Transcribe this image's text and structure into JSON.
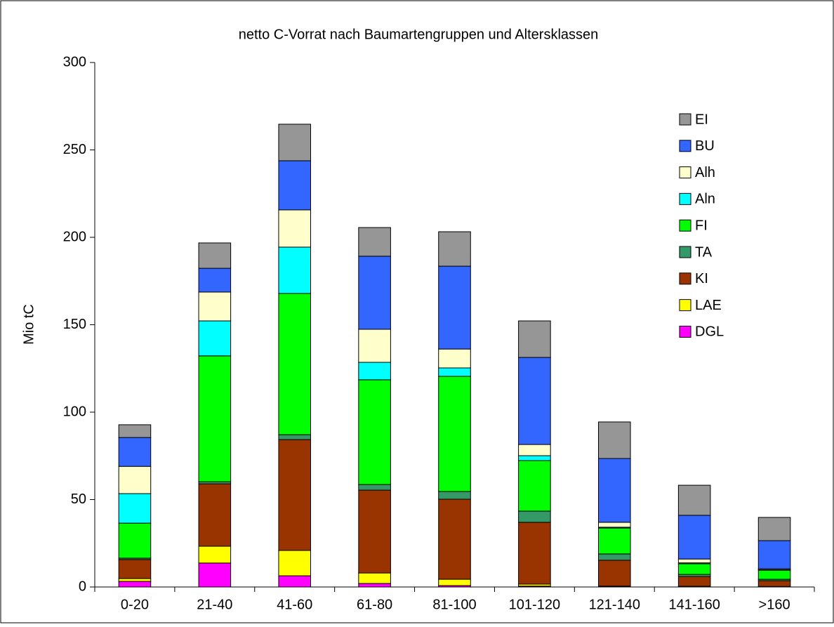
{
  "chart_data": {
    "type": "stacked-bar",
    "title": "netto C-Vorrat nach Baumartengruppen und Altersklassen",
    "y_label": "Mio tC",
    "categories": [
      "0-20",
      "21-40",
      "41-60",
      "61-80",
      "81-100",
      "101-120",
      "121-140",
      "141-160",
      ">160"
    ],
    "series": [
      {
        "name": "DGL",
        "color": "#ff00ff",
        "values": [
          3.2,
          13.7,
          6.4,
          2.0,
          0.8,
          0.5,
          0.3,
          0.2,
          0.2
        ]
      },
      {
        "name": "LAE",
        "color": "#ffff00",
        "values": [
          1.6,
          9.6,
          14.5,
          6.0,
          3.6,
          1.1,
          0.2,
          0.2,
          0.1
        ]
      },
      {
        "name": "KI",
        "color": "#993300",
        "values": [
          10.9,
          35.7,
          63.4,
          47.4,
          45.8,
          35.4,
          14.8,
          5.6,
          3.3
        ]
      },
      {
        "name": "TA",
        "color": "#339966",
        "values": [
          0.8,
          1.2,
          2.8,
          3.2,
          4.4,
          6.4,
          3.6,
          1.2,
          0.8
        ]
      },
      {
        "name": "FI",
        "color": "#00ff00",
        "values": [
          20.0,
          72.0,
          80.8,
          59.9,
          65.9,
          28.9,
          14.8,
          6.1,
          5.2
        ]
      },
      {
        "name": "Aln",
        "color": "#00ffff",
        "values": [
          16.9,
          20.0,
          26.5,
          10.0,
          4.8,
          2.8,
          0.5,
          0.5,
          0.3
        ]
      },
      {
        "name": "Alh",
        "color": "#ffffcc",
        "values": [
          15.6,
          16.5,
          21.3,
          18.9,
          10.8,
          6.4,
          2.8,
          2.2,
          0.5
        ]
      },
      {
        "name": "BU",
        "color": "#3366ff",
        "values": [
          16.5,
          13.6,
          28.1,
          41.8,
          47.4,
          49.8,
          36.5,
          25.0,
          16.1
        ]
      },
      {
        "name": "EI",
        "color": "#969696",
        "values": [
          7.3,
          14.5,
          20.9,
          16.4,
          19.7,
          20.9,
          20.9,
          17.2,
          13.3
        ]
      }
    ],
    "ylim": [
      0,
      300
    ],
    "yticks": [
      0,
      50,
      100,
      150,
      200,
      250,
      300
    ],
    "grid": false,
    "legend": "top-right"
  }
}
